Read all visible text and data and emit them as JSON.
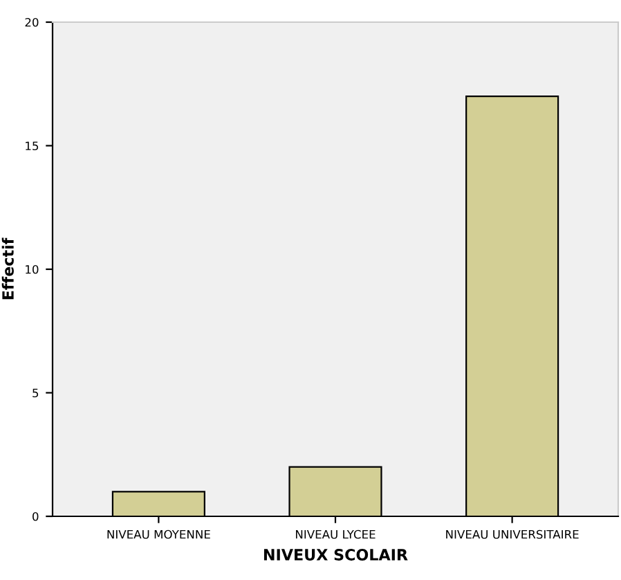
{
  "chart_data": {
    "type": "bar",
    "xlabel": "NIVEUX SCOLAIR",
    "ylabel": "Effectif",
    "categories": [
      "NIVEAU MOYENNE",
      "NIVEAU LYCEE",
      "NIVEAU UNIVERSITAIRE"
    ],
    "values": [
      1,
      2,
      17
    ],
    "color": "#d3cf95",
    "ylim": [
      0,
      20
    ],
    "yticks": [
      0,
      5,
      10,
      15,
      20
    ],
    "grid": false,
    "legend": false
  }
}
